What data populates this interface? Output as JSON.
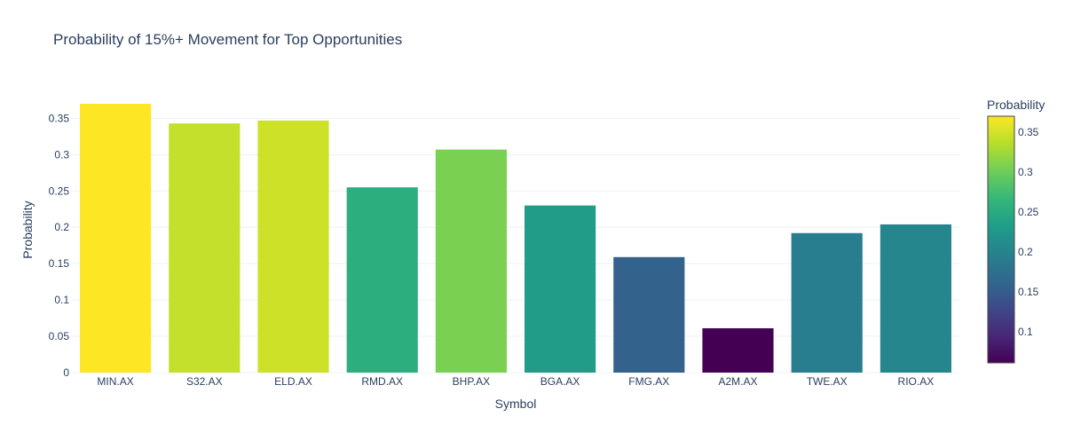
{
  "chart_data": {
    "type": "bar",
    "title": "Probability of 15%+ Movement for Top Opportunities",
    "xlabel": "Symbol",
    "ylabel": "Probability",
    "categories": [
      "MIN.AX",
      "S32.AX",
      "ELD.AX",
      "RMD.AX",
      "BHP.AX",
      "BGA.AX",
      "FMG.AX",
      "A2M.AX",
      "TWE.AX",
      "RIO.AX"
    ],
    "values": [
      0.37,
      0.343,
      0.347,
      0.255,
      0.307,
      0.23,
      0.159,
      0.061,
      0.192,
      0.204
    ],
    "ylim": [
      0,
      0.37
    ],
    "yticks": [
      0,
      0.05,
      0.1,
      0.15,
      0.2,
      0.25,
      0.3,
      0.35
    ],
    "ytick_labels": [
      "0",
      "0.05",
      "0.1",
      "0.15",
      "0.2",
      "0.25",
      "0.3",
      "0.35"
    ],
    "grid": true,
    "colorscale": "Viridis",
    "colorbar": {
      "title": "Probability",
      "min": 0.061,
      "max": 0.37,
      "ticks": [
        0.1,
        0.15,
        0.2,
        0.25,
        0.3,
        0.35
      ],
      "tick_labels": [
        "0.1",
        "0.15",
        "0.2",
        "0.25",
        "0.3",
        "0.35"
      ],
      "placement": "right"
    },
    "colors": {
      "grid": "#ebf0f8",
      "text": "#2a3f5f",
      "background": "#ffffff"
    }
  }
}
